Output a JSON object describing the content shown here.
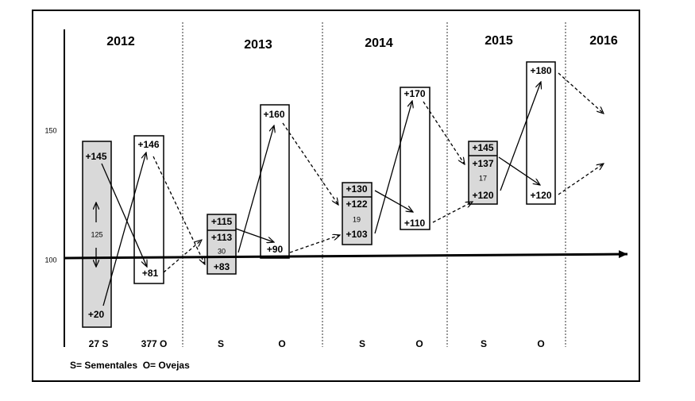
{
  "years": [
    "2012",
    "2013",
    "2014",
    "2015",
    "2016"
  ],
  "y_labels": [
    "150",
    "100"
  ],
  "boxes": [
    {
      "texts": [
        "+145",
        "125",
        "+20"
      ]
    },
    {
      "texts": [
        "+146",
        "+81"
      ]
    },
    {
      "texts": [
        "+115",
        "+113",
        "30",
        "+83"
      ]
    },
    {
      "texts": [
        "+160",
        "+90"
      ]
    },
    {
      "texts": [
        "+130",
        "+122",
        "19",
        "+103"
      ]
    },
    {
      "texts": [
        "+170",
        "+110"
      ]
    },
    {
      "texts": [
        "+145",
        "+137",
        "17",
        "+120"
      ]
    },
    {
      "texts": [
        "+180",
        "+120"
      ]
    }
  ],
  "bottom_labels": [
    "27 S",
    "377 O",
    "S",
    "O",
    "S",
    "O",
    "S",
    "O"
  ],
  "legend": "S= Sementales  O= Ovejas"
}
